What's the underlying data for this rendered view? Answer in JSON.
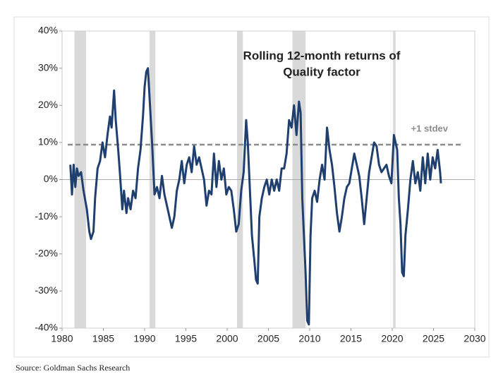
{
  "chart_data": {
    "type": "line",
    "title_lines": [
      "Rolling 12-month returns of",
      "Quality factor"
    ],
    "source": "Source: Goldman Sachs Research",
    "xlim": [
      1980,
      2030
    ],
    "xticks": [
      1980,
      1985,
      1990,
      1995,
      2000,
      2005,
      2010,
      2015,
      2020,
      2025,
      2030
    ],
    "ylim": [
      -40,
      40
    ],
    "yticks": [
      {
        "value": 40,
        "label": "40%"
      },
      {
        "value": 30,
        "label": "30%"
      },
      {
        "value": 20,
        "label": "20%"
      },
      {
        "value": 10,
        "label": "10%"
      },
      {
        "value": 0,
        "label": "0%"
      },
      {
        "value": -10,
        "label": "-10%"
      },
      {
        "value": -20,
        "label": "-20%"
      },
      {
        "value": -30,
        "label": "-30%"
      },
      {
        "value": -40,
        "label": "-40%"
      }
    ],
    "shaded_periods": [
      [
        1981.5,
        1982.9
      ],
      [
        1990.6,
        1991.3
      ],
      [
        2001.2,
        2001.9
      ],
      [
        2007.9,
        2009.5
      ],
      [
        2020.1,
        2020.4
      ]
    ],
    "shade_color": "#d9d9d9",
    "reference_lines": [
      {
        "value": 9.4,
        "label": "+1 stdev",
        "color": "#8c8c8c"
      }
    ],
    "series": [
      {
        "color": "#1f3f6e",
        "x": [
          1981.0,
          1981.2,
          1981.4,
          1981.6,
          1981.8,
          1982.0,
          1982.3,
          1982.6,
          1983.0,
          1983.3,
          1983.5,
          1983.8,
          1984.0,
          1984.3,
          1984.6,
          1984.9,
          1985.2,
          1985.5,
          1985.8,
          1986.0,
          1986.3,
          1986.5,
          1986.8,
          1987.0,
          1987.3,
          1987.5,
          1987.8,
          1988.0,
          1988.3,
          1988.6,
          1988.9,
          1989.2,
          1989.5,
          1989.8,
          1990.0,
          1990.2,
          1990.4,
          1990.6,
          1990.9,
          1991.2,
          1991.5,
          1991.8,
          1992.1,
          1992.4,
          1992.7,
          1993.0,
          1993.3,
          1993.6,
          1993.9,
          1994.2,
          1994.5,
          1994.8,
          1995.1,
          1995.4,
          1995.7,
          1996.0,
          1996.3,
          1996.6,
          1996.9,
          1997.2,
          1997.5,
          1997.8,
          1998.1,
          1998.4,
          1998.7,
          1999.0,
          1999.3,
          1999.6,
          1999.9,
          2000.2,
          2000.5,
          2000.8,
          2001.1,
          2001.4,
          2001.7,
          2002.0,
          2002.3,
          2002.5,
          2002.8,
          2003.0,
          2003.3,
          2003.5,
          2003.7,
          2003.9,
          2004.2,
          2004.5,
          2004.8,
          2005.1,
          2005.4,
          2005.7,
          2006.0,
          2006.3,
          2006.6,
          2006.9,
          2007.2,
          2007.5,
          2007.8,
          2008.1,
          2008.4,
          2008.7,
          2008.9,
          2009.1,
          2009.3,
          2009.5,
          2009.7,
          2009.9,
          2010.1,
          2010.3,
          2010.6,
          2010.9,
          2011.2,
          2011.5,
          2011.8,
          2012.1,
          2012.4,
          2012.7,
          2013.0,
          2013.3,
          2013.6,
          2013.9,
          2014.2,
          2014.5,
          2014.8,
          2015.1,
          2015.4,
          2015.7,
          2016.0,
          2016.3,
          2016.6,
          2016.9,
          2017.2,
          2017.5,
          2017.8,
          2018.1,
          2018.4,
          2018.7,
          2019.0,
          2019.3,
          2019.6,
          2019.9,
          2020.2,
          2020.4,
          2020.6,
          2020.8,
          2021.0,
          2021.2,
          2021.4,
          2021.6,
          2021.9,
          2022.2,
          2022.5,
          2022.8,
          2023.1,
          2023.4,
          2023.7,
          2024.0,
          2024.3,
          2024.6,
          2024.9,
          2025.2,
          2025.5,
          2025.8,
          2025.9
        ],
        "values": [
          4,
          -4,
          4,
          -2,
          3,
          1,
          2,
          -3,
          -8,
          -14,
          -16,
          -14,
          -5,
          3,
          5,
          10,
          6,
          12,
          17,
          14,
          24,
          16,
          8,
          2,
          -8,
          -3,
          -9,
          -5,
          -8,
          -3,
          -5,
          3,
          8,
          17,
          25,
          29,
          30,
          22,
          10,
          -4,
          -2,
          -5,
          1,
          -4,
          -7,
          -10,
          -13,
          -10,
          -3,
          0,
          5,
          -1,
          4,
          6,
          2,
          9,
          4,
          6,
          3,
          0,
          -7,
          -3,
          -4,
          7,
          -2,
          5,
          0,
          3,
          -4,
          -2,
          -3,
          -8,
          -14,
          -12,
          -3,
          2,
          16,
          10,
          -5,
          -15,
          -22,
          -27,
          -28,
          -10,
          -5,
          -2,
          0,
          -4,
          0,
          -3,
          0,
          -3,
          3,
          3,
          7,
          16,
          14,
          20,
          12,
          21,
          18,
          -5,
          -15,
          -25,
          -38,
          -39,
          -15,
          -5,
          -3,
          -6,
          0,
          4,
          0,
          14,
          8,
          4,
          -2,
          -9,
          -14,
          -10,
          -5,
          -2,
          -1,
          3,
          7,
          4,
          1,
          -5,
          -12,
          -5,
          2,
          6,
          10,
          9,
          4,
          2,
          3,
          4,
          1,
          -1,
          12,
          10,
          8,
          -5,
          -12,
          -25,
          -26,
          -15,
          -8,
          0,
          5,
          -1,
          2,
          -3,
          6,
          -1,
          7,
          0,
          6,
          3,
          8,
          2,
          -1
        ]
      }
    ]
  }
}
